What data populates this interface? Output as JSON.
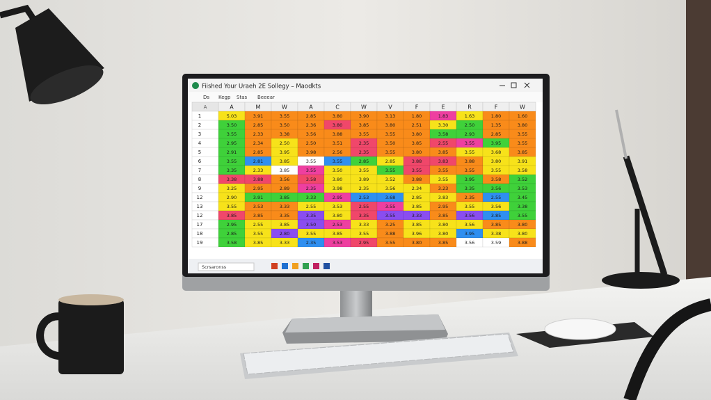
{
  "window": {
    "title": "Fiished Your Uraeh 2E Sollegy – Maodkts",
    "toolbar": [
      "Ds",
      "Kegp",
      "Stas",
      "Beeear"
    ]
  },
  "sheet": {
    "corner": "A",
    "columns": [
      "A",
      "M",
      "W",
      "A",
      "C",
      "W",
      "V",
      "F",
      "E",
      "R",
      "F",
      "W"
    ],
    "palette": {
      "o": "#f98b1a",
      "r": "#f0476a",
      "y": "#f7e21a",
      "g": "#3fd13a",
      "b": "#2f8ff0",
      "p": "#8a4df0",
      "m": "#ee3fa0",
      "w": "#ffffff"
    },
    "rows": [
      {
        "label": "1",
        "colors": "yooooooomyoo",
        "cells": [
          "5.03",
          "3.91",
          "3.55",
          "2.85",
          "3.80",
          "3.90",
          "3.13",
          "1.80",
          "1.83",
          "1.63",
          "1.80",
          "1.60"
        ]
      },
      {
        "label": "2",
        "colors": "goooroooygoo",
        "cells": [
          "3.50",
          "2.85",
          "3.50",
          "2.36",
          "3.80",
          "3.85",
          "3.80",
          "2.51",
          "3.30",
          "2.50",
          "1.35",
          "3.80"
        ]
      },
      {
        "label": "3",
        "colors": "goooooooggoo",
        "cells": [
          "3.55",
          "2.33",
          "3.38",
          "3.56",
          "3.88",
          "3.55",
          "3.55",
          "3.80",
          "3.58",
          "2.93",
          "2.85",
          "3.55"
        ]
      },
      {
        "label": "4",
        "colors": "goyooroormgo",
        "cells": [
          "2.95",
          "2.34",
          "2.50",
          "2.50",
          "3.51",
          "2.35",
          "3.50",
          "3.85",
          "2.55",
          "3.55",
          "3.95",
          "3.55"
        ]
      },
      {
        "label": "5",
        "colors": "goyooroooyyo",
        "cells": [
          "2.91",
          "2.85",
          "3.95",
          "3.98",
          "2.56",
          "2.35",
          "3.55",
          "3.80",
          "3.85",
          "3.55",
          "3.68",
          "3.85"
        ]
      },
      {
        "label": "6",
        "colors": "gbywbgyrroyy",
        "cells": [
          "3.55",
          "2.81",
          "3.85",
          "3.55",
          "3.55",
          "2.85",
          "2.85",
          "3.88",
          "3.83",
          "3.88",
          "3.80",
          "3.91"
        ]
      },
      {
        "label": "7",
        "colors": "gywmyygrooyy",
        "cells": [
          "3.35",
          "2.33",
          "3.85",
          "3.55",
          "3.50",
          "3.55",
          "3.55",
          "3.55",
          "3.55",
          "3.55",
          "3.55",
          "3.58"
        ]
      },
      {
        "label": "8",
        "colors": "rroryyyoygog",
        "cells": [
          "3.38",
          "3.88",
          "3.56",
          "3.58",
          "3.80",
          "3.89",
          "3.52",
          "3.88",
          "3.55",
          "3.95",
          "3.58",
          "3.52"
        ]
      },
      {
        "label": "9",
        "colors": "yoomyyyyoggg",
        "cells": [
          "3.25",
          "2.95",
          "2.89",
          "2.35",
          "3.98",
          "2.35",
          "3.56",
          "2.34",
          "3.23",
          "3.35",
          "3.56",
          "3.53"
        ]
      },
      {
        "label": "12",
        "colors": "ygggmbbyyobg",
        "cells": [
          "2.90",
          "3.91",
          "3.85",
          "3.33",
          "2.95",
          "2.53",
          "3.68",
          "2.85",
          "3.83",
          "2.35",
          "2.55",
          "3.45"
        ]
      },
      {
        "label": "13",
        "colors": "yooyyrmyoyyg",
        "cells": [
          "3.55",
          "3.53",
          "3.33",
          "2.55",
          "3.53",
          "2.55",
          "3.55",
          "3.85",
          "2.95",
          "3.55",
          "3.56",
          "3.38"
        ]
      },
      {
        "label": "12",
        "colors": "roopyrppopbg",
        "cells": [
          "3.85",
          "3.85",
          "3.35",
          "3.35",
          "3.80",
          "3.35",
          "3.55",
          "3.33",
          "3.85",
          "3.56",
          "3.85",
          "3.55"
        ]
      },
      {
        "label": "17",
        "colors": "gyypmyoyyyoo",
        "cells": [
          "2.95",
          "2.55",
          "3.85",
          "3.50",
          "2.53",
          "3.33",
          "3.25",
          "3.85",
          "3.80",
          "3.56",
          "3.85",
          "3.80"
        ]
      },
      {
        "label": "18",
        "colors": "gypyyyoyybyy",
        "cells": [
          "2.85",
          "3.55",
          "2.80",
          "3.55",
          "3.85",
          "3.55",
          "3.88",
          "3.96",
          "3.80",
          "3.95",
          "3.38",
          "3.80"
        ]
      },
      {
        "label": "19",
        "colors": "gyybmrooowwo",
        "cells": [
          "3.58",
          "3.85",
          "3.33",
          "2.35",
          "3.53",
          "2.95",
          "3.55",
          "3.80",
          "3.85",
          "3.56",
          "3.59",
          "3.88"
        ]
      }
    ]
  },
  "taskbar": {
    "search": "Scrsaronss"
  }
}
